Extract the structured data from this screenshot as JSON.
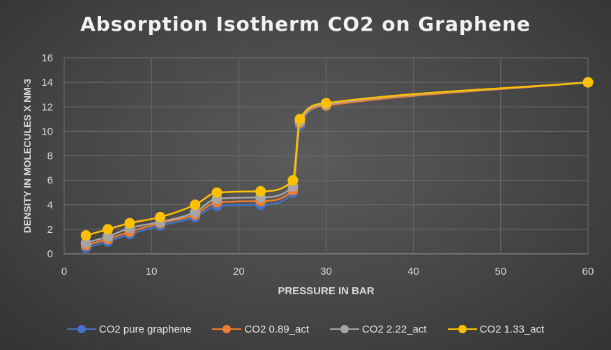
{
  "chart_data": {
    "type": "line",
    "title": "Absorption Isotherm CO2 on Graphene",
    "xlabel": "PRESSURE IN BAR",
    "ylabel": "DENSITY IN MOLECULES X NM-3",
    "xlim": [
      0,
      60
    ],
    "ylim": [
      0,
      16
    ],
    "x_ticks": [
      "0",
      "10",
      "20",
      "30",
      "40",
      "50",
      "60"
    ],
    "y_ticks": [
      "0",
      "2",
      "4",
      "6",
      "8",
      "10",
      "12",
      "14",
      "16"
    ],
    "grid": true,
    "legend_position": "bottom",
    "x": [
      2.5,
      5,
      7.5,
      11,
      15,
      17.5,
      22.5,
      26.2,
      27,
      30,
      60
    ],
    "series": [
      {
        "name": "CO2 pure graphene",
        "color": "#4472c4",
        "values": [
          0.5,
          1.0,
          1.6,
          2.3,
          3.0,
          3.9,
          4.0,
          5.0,
          10.5,
          12.1,
          14.0
        ]
      },
      {
        "name": "CO2 0.89_act",
        "color": "#ed7d31",
        "values": [
          0.7,
          1.2,
          1.8,
          2.5,
          3.2,
          4.2,
          4.3,
          5.2,
          10.7,
          12.1,
          14.0
        ]
      },
      {
        "name": "CO2 2.22_act",
        "color": "#a5a5a5",
        "values": [
          0.9,
          1.4,
          2.1,
          2.6,
          3.4,
          4.5,
          4.6,
          5.5,
          10.8,
          12.2,
          14.0
        ]
      },
      {
        "name": "CO2 1.33_act",
        "color": "#ffc000",
        "values": [
          1.5,
          2.0,
          2.5,
          3.0,
          4.0,
          5.0,
          5.1,
          6.0,
          11.0,
          12.3,
          14.0
        ]
      }
    ]
  }
}
